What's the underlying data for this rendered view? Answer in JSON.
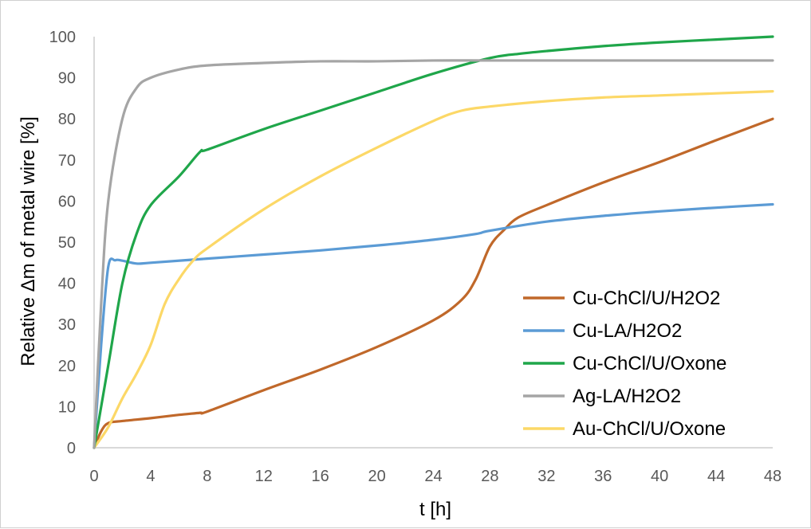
{
  "chart_data": {
    "type": "line",
    "title": "",
    "xlabel": "t [h]",
    "ylabel": "Relative Δm of metal wire [%]",
    "xlim": [
      0,
      48
    ],
    "ylim": [
      0,
      100
    ],
    "xticks": [
      0,
      4,
      8,
      12,
      16,
      20,
      24,
      28,
      32,
      36,
      40,
      44,
      48
    ],
    "yticks": [
      0,
      10,
      20,
      30,
      40,
      50,
      60,
      70,
      80,
      90,
      100
    ],
    "grid": false,
    "legend_position": "bottom-right",
    "series": [
      {
        "name": "Cu-ChCl/U/H2O2",
        "color": "#c0682a",
        "points": [
          [
            0,
            0
          ],
          [
            0.5,
            4
          ],
          [
            1,
            6
          ],
          [
            2,
            6.5
          ],
          [
            4,
            7.2
          ],
          [
            6,
            8
          ],
          [
            7.5,
            8.5
          ],
          [
            8,
            8.8
          ],
          [
            12,
            14
          ],
          [
            16,
            19
          ],
          [
            20,
            24.5
          ],
          [
            24,
            31
          ],
          [
            26,
            36
          ],
          [
            27,
            41
          ],
          [
            28,
            49
          ],
          [
            29,
            53
          ],
          [
            30,
            56
          ],
          [
            32,
            59
          ],
          [
            36,
            64.5
          ],
          [
            40,
            69.5
          ],
          [
            44,
            74.8
          ],
          [
            48,
            80
          ]
        ]
      },
      {
        "name": "Cu-LA/H2O2",
        "color": "#5b9bd5",
        "points": [
          [
            0,
            0
          ],
          [
            0.5,
            25
          ],
          [
            1,
            44
          ],
          [
            1.5,
            45.6
          ],
          [
            2,
            45.5
          ],
          [
            3,
            44.8
          ],
          [
            4,
            45
          ],
          [
            8,
            46
          ],
          [
            12,
            47
          ],
          [
            16,
            48
          ],
          [
            20,
            49.2
          ],
          [
            24,
            50.6
          ],
          [
            27,
            52
          ],
          [
            28,
            52.8
          ],
          [
            32,
            55
          ],
          [
            36,
            56.4
          ],
          [
            40,
            57.5
          ],
          [
            44,
            58.4
          ],
          [
            48,
            59.2
          ]
        ]
      },
      {
        "name": "Cu-ChCl/U/Oxone",
        "color": "#1fa64a",
        "points": [
          [
            0,
            0
          ],
          [
            1,
            20
          ],
          [
            2,
            40
          ],
          [
            3,
            52
          ],
          [
            4,
            59
          ],
          [
            6,
            66
          ],
          [
            7.5,
            72
          ],
          [
            8,
            72.5
          ],
          [
            12,
            77.5
          ],
          [
            16,
            82
          ],
          [
            20,
            86.5
          ],
          [
            24,
            91
          ],
          [
            28,
            94.8
          ],
          [
            30,
            95.8
          ],
          [
            32,
            96.5
          ],
          [
            36,
            97.7
          ],
          [
            40,
            98.6
          ],
          [
            44,
            99.3
          ],
          [
            48,
            100
          ]
        ]
      },
      {
        "name": "Ag-LA/H2O2",
        "color": "#a5a5a5",
        "points": [
          [
            0,
            0
          ],
          [
            0.5,
            35
          ],
          [
            1,
            60
          ],
          [
            2,
            80
          ],
          [
            3,
            87.5
          ],
          [
            4,
            90
          ],
          [
            6,
            92
          ],
          [
            8,
            93
          ],
          [
            12,
            93.6
          ],
          [
            16,
            94
          ],
          [
            20,
            94
          ],
          [
            24,
            94.2
          ],
          [
            28,
            94.2
          ],
          [
            32,
            94.2
          ],
          [
            36,
            94.2
          ],
          [
            40,
            94.2
          ],
          [
            44,
            94.2
          ],
          [
            48,
            94.2
          ]
        ]
      },
      {
        "name": "Au-ChCl/U/Oxone",
        "color": "#fcd867",
        "points": [
          [
            0,
            0
          ],
          [
            1,
            5
          ],
          [
            2,
            12
          ],
          [
            3,
            18
          ],
          [
            4,
            25
          ],
          [
            5,
            35
          ],
          [
            6,
            41
          ],
          [
            7,
            45.5
          ],
          [
            8,
            48.5
          ],
          [
            12,
            58
          ],
          [
            16,
            66
          ],
          [
            20,
            73
          ],
          [
            24,
            79.5
          ],
          [
            26,
            82
          ],
          [
            28,
            83
          ],
          [
            32,
            84.3
          ],
          [
            36,
            85.2
          ],
          [
            40,
            85.7
          ],
          [
            44,
            86.2
          ],
          [
            48,
            86.7
          ]
        ]
      }
    ]
  }
}
